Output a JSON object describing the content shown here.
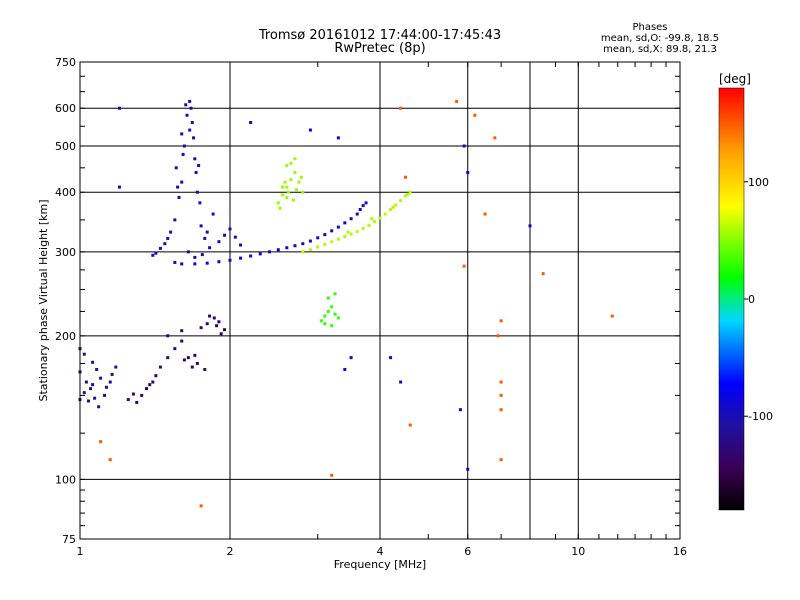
{
  "header": {
    "title_line1": "Tromsø 20161012 17:44:00-17:45:43",
    "title_line2": "RwPretec (8p)"
  },
  "phases": {
    "heading": "Phases",
    "line_o": "mean, sd,O: -99.8, 18.5",
    "line_x": "mean, sd,X: 89.8, 21.3"
  },
  "chart_data": {
    "type": "scatter",
    "xlabel": "Frequency [MHz]",
    "ylabel": "Stationary phase Virtual Height [km]",
    "xscale": "log",
    "yscale": "log",
    "xlim": [
      1,
      16
    ],
    "ylim": [
      75,
      750
    ],
    "xticks": [
      1,
      2,
      4,
      6,
      10,
      16
    ],
    "xticks_minor": [
      8
    ],
    "yticks": [
      75,
      100,
      200,
      300,
      400,
      500,
      600,
      750
    ],
    "grid": true,
    "colorbar": {
      "label": "[deg]",
      "range": [
        -180,
        180
      ],
      "ticks": [
        100,
        0,
        -100
      ]
    },
    "point_groups": [
      {
        "desc": "E-region echoes",
        "phase": -115,
        "pts": [
          [
            1.0,
            168
          ],
          [
            1.03,
            160
          ],
          [
            1.05,
            155
          ],
          [
            1.07,
            148
          ],
          [
            1.09,
            142
          ],
          [
            1.12,
            150
          ],
          [
            1.15,
            160
          ],
          [
            1.18,
            172
          ],
          [
            1.0,
            147
          ],
          [
            1.02,
            152
          ],
          [
            1.04,
            146
          ],
          [
            1.06,
            158
          ],
          [
            1.1,
            163
          ],
          [
            1.13,
            156
          ],
          [
            1.16,
            166
          ],
          [
            1.0,
            188
          ],
          [
            1.02,
            183
          ],
          [
            1.06,
            176
          ],
          [
            1.08,
            170
          ]
        ]
      },
      {
        "desc": "lower echoes",
        "phase": -135,
        "pts": [
          [
            1.3,
            145
          ],
          [
            1.33,
            150
          ],
          [
            1.36,
            155
          ],
          [
            1.4,
            160
          ],
          [
            1.45,
            172
          ],
          [
            1.5,
            180
          ],
          [
            1.55,
            188
          ],
          [
            1.6,
            195
          ],
          [
            1.65,
            180
          ],
          [
            1.72,
            175
          ],
          [
            1.78,
            170
          ],
          [
            1.5,
            200
          ],
          [
            1.6,
            205
          ],
          [
            1.7,
            182
          ],
          [
            1.75,
            208
          ],
          [
            1.8,
            212
          ],
          [
            1.86,
            218
          ],
          [
            1.9,
            214
          ],
          [
            1.95,
            206
          ],
          [
            1.82,
            220
          ],
          [
            1.88,
            210
          ],
          [
            1.92,
            202
          ],
          [
            1.25,
            147
          ],
          [
            1.28,
            151
          ],
          [
            1.38,
            158
          ],
          [
            1.42,
            165
          ],
          [
            1.62,
            178
          ],
          [
            1.68,
            172
          ]
        ]
      },
      {
        "desc": "O-mode cusp and spread",
        "phase": -100,
        "pts": [
          [
            1.4,
            295
          ],
          [
            1.45,
            305
          ],
          [
            1.5,
            320
          ],
          [
            1.55,
            350
          ],
          [
            1.6,
            420
          ],
          [
            1.62,
            500
          ],
          [
            1.64,
            580
          ],
          [
            1.66,
            620
          ],
          [
            1.68,
            560
          ],
          [
            1.7,
            470
          ],
          [
            1.72,
            400
          ],
          [
            1.75,
            340
          ],
          [
            1.78,
            320
          ],
          [
            1.8,
            330
          ],
          [
            1.85,
            360
          ],
          [
            1.58,
            390
          ],
          [
            1.56,
            450
          ],
          [
            1.6,
            530
          ],
          [
            1.63,
            610
          ],
          [
            1.67,
            600
          ],
          [
            1.69,
            520
          ],
          [
            1.71,
            440
          ],
          [
            1.74,
            380
          ],
          [
            1.52,
            330
          ],
          [
            1.48,
            312
          ],
          [
            1.42,
            298
          ],
          [
            1.65,
            300
          ],
          [
            1.7,
            292
          ],
          [
            1.76,
            296
          ],
          [
            1.82,
            306
          ],
          [
            1.9,
            315
          ],
          [
            1.95,
            325
          ],
          [
            2.0,
            335
          ],
          [
            2.05,
            322
          ],
          [
            2.1,
            310
          ],
          [
            1.73,
            455
          ],
          [
            1.66,
            540
          ],
          [
            1.61,
            480
          ],
          [
            1.57,
            410
          ]
        ]
      },
      {
        "desc": "O-mode trace",
        "phase": -95,
        "pts": [
          [
            1.55,
            285
          ],
          [
            1.6,
            283
          ],
          [
            1.7,
            283
          ],
          [
            1.8,
            284
          ],
          [
            1.9,
            286
          ],
          [
            2.0,
            288
          ],
          [
            2.1,
            291
          ],
          [
            2.2,
            294
          ],
          [
            2.3,
            297
          ],
          [
            2.4,
            300
          ],
          [
            2.5,
            303
          ],
          [
            2.6,
            306
          ],
          [
            2.7,
            309
          ],
          [
            2.8,
            312
          ],
          [
            2.9,
            316
          ],
          [
            3.0,
            321
          ],
          [
            3.1,
            326
          ],
          [
            3.2,
            332
          ],
          [
            3.3,
            338
          ],
          [
            3.4,
            345
          ],
          [
            3.5,
            352
          ],
          [
            3.6,
            360
          ],
          [
            3.65,
            368
          ],
          [
            3.7,
            375
          ],
          [
            3.75,
            380
          ]
        ]
      },
      {
        "desc": "X-mode trace",
        "phase": 60,
        "pts": [
          [
            2.8,
            300
          ],
          [
            2.9,
            303
          ],
          [
            3.0,
            307
          ],
          [
            3.1,
            311
          ],
          [
            3.2,
            315
          ],
          [
            3.3,
            319
          ],
          [
            3.4,
            323
          ],
          [
            3.5,
            327
          ],
          [
            3.6,
            331
          ],
          [
            3.7,
            336
          ],
          [
            3.8,
            341
          ],
          [
            3.9,
            347
          ],
          [
            4.0,
            353
          ],
          [
            4.1,
            360
          ],
          [
            4.2,
            368
          ],
          [
            4.3,
            376
          ],
          [
            4.4,
            384
          ],
          [
            4.5,
            393
          ],
          [
            4.6,
            400
          ],
          [
            3.45,
            330
          ],
          [
            3.85,
            352
          ],
          [
            4.25,
            372
          ],
          [
            4.55,
            396
          ]
        ]
      },
      {
        "desc": "oblique echo around 2.6 MHz",
        "phase": 55,
        "pts": [
          [
            2.5,
            380
          ],
          [
            2.55,
            395
          ],
          [
            2.6,
            410
          ],
          [
            2.65,
            425
          ],
          [
            2.7,
            440
          ],
          [
            2.75,
            420
          ],
          [
            2.8,
            400
          ],
          [
            2.6,
            390
          ],
          [
            2.55,
            410
          ],
          [
            2.65,
            460
          ],
          [
            2.7,
            470
          ],
          [
            2.6,
            455
          ],
          [
            2.58,
            420
          ],
          [
            2.72,
            405
          ],
          [
            2.68,
            385
          ],
          [
            2.62,
            400
          ],
          [
            2.52,
            370
          ],
          [
            2.78,
            430
          ]
        ]
      },
      {
        "desc": "green patch",
        "phase": 30,
        "pts": [
          [
            3.05,
            215
          ],
          [
            3.1,
            220
          ],
          [
            3.15,
            225
          ],
          [
            3.2,
            230
          ],
          [
            3.25,
            222
          ],
          [
            3.3,
            218
          ],
          [
            3.1,
            212
          ],
          [
            3.2,
            210
          ],
          [
            3.15,
            240
          ],
          [
            3.25,
            245
          ]
        ]
      },
      {
        "desc": "scattered points",
        "phase": 150,
        "pts": [
          [
            4.4,
            600
          ],
          [
            4.5,
            430
          ],
          [
            5.7,
            620
          ],
          [
            6.2,
            580
          ],
          [
            6.8,
            520
          ],
          [
            7.0,
            160
          ],
          [
            7.0,
            150
          ],
          [
            7.0,
            140
          ],
          [
            7.0,
            110
          ],
          [
            8.5,
            270
          ],
          [
            11.7,
            220
          ],
          [
            6.9,
            200
          ],
          [
            7.0,
            215
          ],
          [
            1.75,
            88
          ],
          [
            3.2,
            102
          ],
          [
            1.1,
            120
          ],
          [
            1.15,
            110
          ],
          [
            4.6,
            130
          ],
          [
            5.9,
            280
          ],
          [
            6.5,
            360
          ]
        ]
      },
      {
        "desc": "scattered points blue",
        "phase": -90,
        "pts": [
          [
            1.2,
            600
          ],
          [
            1.2,
            410
          ],
          [
            3.4,
            170
          ],
          [
            3.5,
            180
          ],
          [
            4.2,
            180
          ],
          [
            4.4,
            160
          ],
          [
            5.8,
            140
          ],
          [
            6.0,
            105
          ],
          [
            6.0,
            440
          ],
          [
            8.0,
            340
          ],
          [
            2.2,
            560
          ],
          [
            2.9,
            540
          ],
          [
            3.3,
            520
          ],
          [
            5.9,
            500
          ]
        ]
      }
    ]
  }
}
